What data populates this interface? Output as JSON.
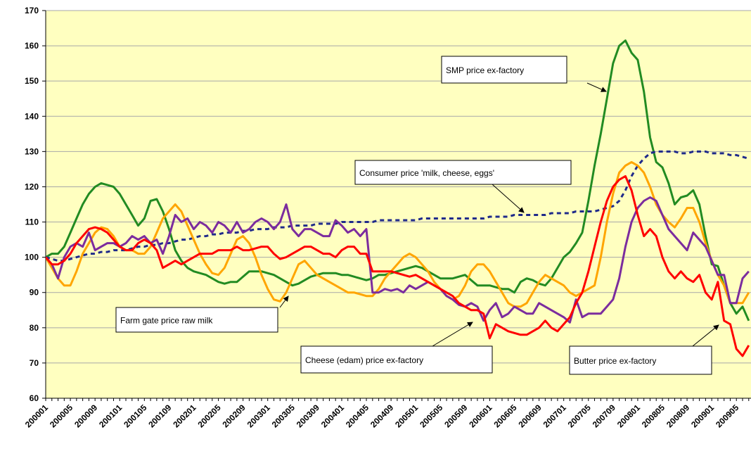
{
  "chart_data": {
    "type": "line",
    "categories": [
      "200001",
      null,
      null,
      null,
      "200005",
      null,
      null,
      null,
      "200009",
      null,
      null,
      null,
      "200101",
      null,
      null,
      null,
      "200105",
      null,
      null,
      null,
      "200109",
      null,
      null,
      null,
      "200201",
      null,
      null,
      null,
      "200205",
      null,
      null,
      null,
      "200209",
      null,
      null,
      null,
      "200301",
      null,
      null,
      null,
      "200305",
      null,
      null,
      null,
      "200309",
      null,
      null,
      null,
      "200401",
      null,
      null,
      null,
      "200405",
      null,
      null,
      null,
      "200409",
      null,
      null,
      null,
      "200501",
      null,
      null,
      null,
      "200505",
      null,
      null,
      null,
      "200509",
      null,
      null,
      null,
      "200601",
      null,
      null,
      null,
      "200605",
      null,
      null,
      null,
      "200609",
      null,
      null,
      null,
      "200701",
      null,
      null,
      null,
      "200705",
      null,
      null,
      null,
      "200709",
      null,
      null,
      null,
      "200801",
      null,
      null,
      null,
      "200805",
      null,
      null,
      null,
      "200809",
      null,
      null,
      null,
      "200901",
      null,
      null,
      null,
      "200905",
      null,
      null
    ],
    "series": [
      {
        "name": "SMP price ex-factory",
        "color": "#228b22",
        "line_style": "solid",
        "values": [
          100,
          101,
          101,
          103,
          107,
          111,
          115,
          118,
          120,
          121,
          120.5,
          120,
          118,
          115,
          112,
          109,
          111,
          116,
          116.5,
          113,
          108,
          102,
          99,
          97,
          96,
          95.5,
          95,
          94,
          93,
          92.5,
          93,
          93,
          94.5,
          96,
          96,
          96,
          95.5,
          95,
          94,
          93,
          92,
          92.5,
          93.5,
          94.5,
          95,
          95.5,
          95.5,
          95.5,
          95,
          95,
          94.5,
          94,
          93.5,
          94,
          95,
          95,
          95.5,
          96,
          96.5,
          97,
          97.5,
          97,
          96,
          95,
          94,
          94,
          94,
          94.5,
          95,
          93.5,
          92,
          92,
          92,
          91.5,
          91,
          91,
          90,
          93,
          94,
          93.5,
          92.5,
          92,
          94,
          97,
          100,
          101.5,
          104,
          107,
          116,
          126,
          135,
          145,
          155,
          160,
          161.5,
          158,
          156,
          147,
          134,
          127,
          125.5,
          121,
          115,
          117,
          117.5,
          119,
          115,
          106,
          98,
          97.5,
          92,
          87,
          84,
          86,
          82
        ]
      },
      {
        "name": "Consumer price 'milk, cheese, eggs'",
        "color": "#1f2a8a",
        "line_style": "dashed",
        "values": [
          100,
          99.5,
          99,
          99,
          99.5,
          100,
          100.5,
          101,
          101,
          101.5,
          101.5,
          102,
          102,
          102,
          102.5,
          103,
          103,
          103.5,
          103.5,
          104,
          104,
          104.5,
          105,
          105,
          105.5,
          106,
          106,
          106.5,
          106.5,
          107,
          107,
          107,
          107.5,
          107.5,
          108,
          108,
          108,
          108.5,
          108.5,
          108.5,
          109,
          109,
          109,
          109,
          109.5,
          109.5,
          109.5,
          109.5,
          110,
          110,
          110,
          110,
          110,
          110,
          110.5,
          110.5,
          110.5,
          110.5,
          110.5,
          110.5,
          110.5,
          111,
          111,
          111,
          111,
          111,
          111,
          111,
          111,
          111,
          111,
          111,
          111.5,
          111.5,
          111.5,
          111.5,
          112,
          112,
          112,
          112,
          112,
          112,
          112.5,
          112.5,
          112.5,
          112.5,
          113,
          113,
          113,
          113,
          113.5,
          114,
          114.5,
          116,
          119,
          123,
          126,
          128,
          129.5,
          130,
          130,
          130,
          130,
          129.5,
          129.5,
          130,
          130,
          130,
          129.5,
          129.5,
          129.5,
          129,
          129,
          128.5,
          128
        ]
      },
      {
        "name": "Farm gate price raw milk",
        "color": "#ffa500",
        "line_style": "solid",
        "values": [
          100,
          97,
          94,
          92,
          92,
          96,
          101,
          104,
          107,
          108.5,
          108,
          106,
          103,
          102,
          102,
          101,
          101,
          103,
          107,
          111,
          113,
          115,
          113,
          109,
          105,
          101,
          98,
          95.5,
          95,
          97,
          101,
          105,
          106,
          104,
          100,
          95,
          91,
          88,
          87.5,
          90,
          94,
          98,
          99,
          97,
          95,
          94,
          93,
          92,
          91,
          90,
          90,
          89.5,
          89,
          89,
          91,
          94,
          96,
          98,
          100,
          101,
          100,
          98,
          96,
          93,
          91,
          89,
          88,
          89,
          92,
          96,
          98,
          98,
          96,
          93,
          90,
          87,
          86,
          86,
          87,
          90,
          93,
          95,
          94,
          93,
          92,
          90,
          89,
          90,
          91,
          92,
          100,
          110,
          118,
          124,
          126,
          127,
          126,
          124,
          120,
          115,
          112,
          110,
          108.5,
          111,
          114,
          114,
          110,
          104,
          99,
          95,
          92,
          87,
          87,
          87,
          90
        ]
      },
      {
        "name": "Cheese (edam) price ex-factory",
        "color": "#7b2c9e",
        "line_style": "solid",
        "values": [
          100,
          98,
          94,
          100,
          103,
          104,
          103,
          107,
          102,
          103,
          104,
          104,
          103,
          104,
          106,
          105,
          106,
          104,
          105,
          101,
          106,
          112,
          110,
          111,
          108,
          110,
          109,
          107,
          110,
          109,
          107,
          110,
          107,
          108,
          110,
          111,
          110,
          108,
          110,
          115,
          108,
          106,
          108,
          108,
          107,
          106,
          106,
          110.5,
          109,
          107,
          108,
          106,
          108,
          90,
          90,
          91,
          90.5,
          91,
          90,
          92,
          91,
          92,
          93,
          92,
          91,
          89,
          88,
          86.5,
          86,
          87,
          86,
          82,
          85,
          87,
          83,
          84,
          86,
          85,
          84,
          84,
          87,
          86,
          85,
          84,
          83,
          81.5,
          88,
          83,
          84,
          84,
          84,
          86,
          88,
          94,
          103,
          110,
          114,
          116,
          117,
          116,
          112,
          108,
          106,
          104,
          102,
          107,
          105,
          103,
          99,
          95,
          95,
          87,
          87,
          94,
          96
        ]
      },
      {
        "name": "Butter price ex-factory",
        "color": "#ff0000",
        "line_style": "solid",
        "values": [
          100,
          98,
          98,
          99,
          101,
          104,
          106,
          108,
          108.5,
          108,
          107,
          105,
          103,
          102,
          102,
          104,
          105,
          104,
          102,
          97,
          98,
          99,
          98,
          99,
          100,
          101,
          101,
          101,
          102,
          102,
          102,
          103,
          102,
          102,
          102.5,
          103,
          103,
          101,
          99.5,
          100,
          101,
          102,
          103,
          103,
          102,
          101,
          101,
          100,
          102,
          103,
          103,
          101,
          101,
          96,
          96,
          96,
          96,
          95.5,
          95,
          94.5,
          95,
          94,
          93,
          92,
          91,
          90,
          89,
          87,
          86,
          85,
          85,
          84,
          77,
          81,
          80,
          79,
          78.5,
          78,
          78,
          79,
          80,
          82,
          80,
          79,
          81,
          83,
          87,
          90,
          96,
          103,
          110,
          116,
          120,
          122,
          123,
          119,
          112,
          106,
          108,
          106,
          100,
          96,
          94,
          96,
          94,
          93,
          95,
          90,
          88,
          93,
          82,
          81,
          74,
          72,
          75
        ]
      }
    ],
    "ylim": [
      60,
      170
    ],
    "yticks": [
      60,
      70,
      80,
      90,
      100,
      110,
      120,
      130,
      140,
      150,
      160,
      170
    ],
    "grid": true
  }
}
